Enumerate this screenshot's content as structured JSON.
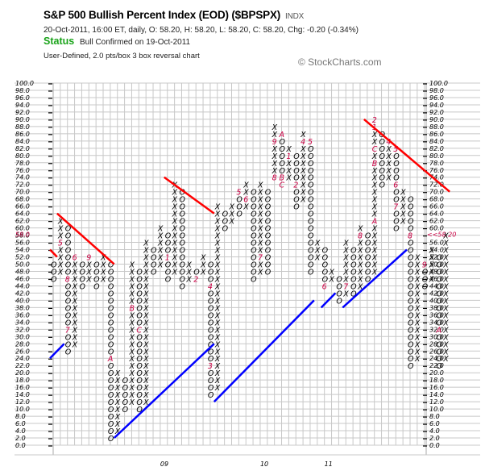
{
  "header": {
    "title": "S&P 500 Bullish Percent Index (EOD) ($BPSPX)",
    "symbol_type": "INDX",
    "quote_line": "20-Oct-2011, 16:00 ET, daily, O: 58.20, H: 58.20, L: 58.20, C: 58.20, Chg: -0.20 (-0.34%)",
    "status_label": "Status",
    "status_text": "Bull Confirmed on 19-Oct-2011",
    "chart_type": "User-Defined, 2.0 pts/box 3 box reversal chart",
    "copyright": "© StockCharts.com"
  },
  "colors": {
    "x_color": "#000000",
    "o_color": "#000000",
    "month_marker": "#cc0044",
    "resistance_line": "#ff0000",
    "support_line": "#0000ff",
    "grid": "#c8c8c8",
    "status": "#1aa31a",
    "last_price": "#cc0044"
  },
  "chart_data": {
    "type": "point-and-figure",
    "title": "S&P 500 Bullish Percent Index (EOD) ($BPSPX)",
    "box_size": 2.0,
    "reversal": 3,
    "ylim": [
      0,
      100
    ],
    "y_ticks": [
      "100.0",
      "98.0",
      "96.0",
      "94.0",
      "92.0",
      "90.0",
      "88.0",
      "86.0",
      "84.0",
      "82.0",
      "80.0",
      "78.0",
      "76.0",
      "74.0",
      "72.0",
      "70.0",
      "68.0",
      "66.0",
      "64.0",
      "62.0",
      "60.0",
      "58.0",
      "56.0",
      "54.0",
      "52.0",
      "50.0",
      "48.0",
      "46.0",
      "44.0",
      "42.0",
      "40.0",
      "38.0",
      "36.0",
      "34.0",
      "32.0",
      "30.0",
      "28.0",
      "26.0",
      "24.0",
      "22.0",
      "20.0",
      "18.0",
      "16.0",
      "14.0",
      "12.0",
      "10.0",
      "8.0",
      "6.0",
      "4.0",
      "2.0",
      "0.0"
    ],
    "last_value_label": "<<58.20",
    "last_value": 58.2,
    "x_labels": [
      {
        "label": "09",
        "col": 15
      },
      {
        "label": "10",
        "col": 29
      },
      {
        "label": "11",
        "col": 38
      }
    ],
    "columns": [
      {
        "col": 0,
        "type": "O",
        "from": 50,
        "to": 46,
        "marks": {}
      },
      {
        "col": 1,
        "type": "X",
        "from": 48,
        "to": 62,
        "marks": {
          "56": "5"
        }
      },
      {
        "col": 2,
        "type": "O",
        "from": 60,
        "to": 26,
        "marks": {
          "46": "8",
          "32": "7"
        }
      },
      {
        "col": 3,
        "type": "X",
        "from": 28,
        "to": 52,
        "marks": {
          "52": "6"
        }
      },
      {
        "col": 4,
        "type": "O",
        "from": 50,
        "to": 44,
        "marks": {}
      },
      {
        "col": 5,
        "type": "X",
        "from": 46,
        "to": 52,
        "marks": {
          "52": "9"
        }
      },
      {
        "col": 6,
        "type": "O",
        "from": 50,
        "to": 44,
        "marks": {}
      },
      {
        "col": 7,
        "type": "X",
        "from": 46,
        "to": 52,
        "marks": {}
      },
      {
        "col": 8,
        "type": "O",
        "from": 50,
        "to": 2,
        "marks": {
          "24": "A"
        }
      },
      {
        "col": 9,
        "type": "X",
        "from": 4,
        "to": 20,
        "marks": {}
      },
      {
        "col": 10,
        "type": "O",
        "from": 18,
        "to": 10,
        "marks": {}
      },
      {
        "col": 11,
        "type": "X",
        "from": 12,
        "to": 50,
        "marks": {
          "38": "B"
        }
      },
      {
        "col": 12,
        "type": "O",
        "from": 48,
        "to": 10,
        "marks": {
          "32": "C"
        }
      },
      {
        "col": 13,
        "type": "X",
        "from": 12,
        "to": 56,
        "marks": {}
      },
      {
        "col": 14,
        "type": "O",
        "from": 54,
        "to": 48,
        "marks": {}
      },
      {
        "col": 15,
        "type": "X",
        "from": 50,
        "to": 60,
        "marks": {}
      },
      {
        "col": 16,
        "type": "O",
        "from": 58,
        "to": 46,
        "marks": {
          "52": "1"
        }
      },
      {
        "col": 17,
        "type": "X",
        "from": 48,
        "to": 72,
        "marks": {}
      },
      {
        "col": 18,
        "type": "O",
        "from": 70,
        "to": 44,
        "marks": {}
      },
      {
        "col": 19,
        "type": "X",
        "from": 46,
        "to": 50,
        "marks": {}
      },
      {
        "col": 20,
        "type": "O",
        "from": 48,
        "to": 46,
        "marks": {
          "46": "2"
        }
      },
      {
        "col": 21,
        "type": "X",
        "from": 48,
        "to": 52,
        "marks": {}
      },
      {
        "col": 22,
        "type": "O",
        "from": 50,
        "to": 14,
        "marks": {
          "44": "4",
          "22": "3"
        }
      },
      {
        "col": 23,
        "type": "X",
        "from": 16,
        "to": 66,
        "marks": {}
      },
      {
        "col": 24,
        "type": "O",
        "from": 64,
        "to": 60,
        "marks": {}
      },
      {
        "col": 25,
        "type": "X",
        "from": 62,
        "to": 66,
        "marks": {}
      },
      {
        "col": 26,
        "type": "O",
        "from": 70,
        "to": 64,
        "marks": {
          "70": "5"
        }
      },
      {
        "col": 27,
        "type": "X",
        "from": 66,
        "to": 72,
        "marks": {
          "68": "6"
        }
      },
      {
        "col": 28,
        "type": "O",
        "from": 70,
        "to": 46,
        "marks": {}
      },
      {
        "col": 29,
        "type": "X",
        "from": 48,
        "to": 72,
        "marks": {
          "52": "7"
        }
      },
      {
        "col": 30,
        "type": "O",
        "from": 70,
        "to": 48,
        "marks": {}
      },
      {
        "col": 31,
        "type": "X",
        "from": 74,
        "to": 88,
        "marks": {
          "84": "9",
          "74": "8"
        }
      },
      {
        "col": 32,
        "type": "O",
        "from": 86,
        "to": 72,
        "marks": {
          "86": "A",
          "74": "B",
          "72": "C"
        }
      },
      {
        "col": 33,
        "type": "X",
        "from": 74,
        "to": 82,
        "marks": {
          "80": "1"
        }
      },
      {
        "col": 34,
        "type": "O",
        "from": 80,
        "to": 66,
        "marks": {
          "72": "2"
        }
      },
      {
        "col": 35,
        "type": "X",
        "from": 68,
        "to": 86,
        "marks": {
          "84": "4",
          "66": "3"
        }
      },
      {
        "col": 36,
        "type": "O",
        "from": 84,
        "to": 48,
        "marks": {
          "84": "5"
        }
      },
      {
        "col": 37,
        "type": "X",
        "from": 52,
        "to": 56,
        "marks": {}
      },
      {
        "col": 38,
        "type": "O",
        "from": 54,
        "to": 44,
        "marks": {
          "44": "6"
        }
      },
      {
        "col": 39,
        "type": "X",
        "from": 46,
        "to": 48,
        "marks": {}
      },
      {
        "col": 40,
        "type": "O",
        "from": 46,
        "to": 40,
        "marks": {}
      },
      {
        "col": 41,
        "type": "X",
        "from": 42,
        "to": 56,
        "marks": {
          "44": "7"
        }
      },
      {
        "col": 42,
        "type": "O",
        "from": 54,
        "to": 42,
        "marks": {}
      },
      {
        "col": 43,
        "type": "X",
        "from": 44,
        "to": 60,
        "marks": {
          "58": "8"
        }
      },
      {
        "col": 44,
        "type": "O",
        "from": 58,
        "to": 46,
        "marks": {
          "44": "9"
        }
      },
      {
        "col": 45,
        "type": "X",
        "from": 48,
        "to": 90,
        "marks": {
          "90": "2",
          "88": "1",
          "82": "C",
          "78": "B",
          "62": "A"
        }
      },
      {
        "col": 46,
        "type": "O",
        "from": 86,
        "to": 72,
        "marks": {
          "88": "3"
        }
      },
      {
        "col": 47,
        "type": "X",
        "from": 74,
        "to": 84,
        "marks": {
          "84": "4"
        }
      },
      {
        "col": 48,
        "type": "O",
        "from": 82,
        "to": 60,
        "marks": {
          "82": "5",
          "72": "6",
          "66": "7"
        }
      },
      {
        "col": 49,
        "type": "X",
        "from": 62,
        "to": 70,
        "marks": {}
      },
      {
        "col": 50,
        "type": "O",
        "from": 68,
        "to": 22,
        "marks": {
          "58": "8"
        }
      },
      {
        "col": 51,
        "type": "X",
        "from": 24,
        "to": 52,
        "marks": {}
      },
      {
        "col": 52,
        "type": "O",
        "from": 50,
        "to": 44,
        "marks": {
          "50": "9"
        }
      },
      {
        "col": 53,
        "type": "X",
        "from": 46,
        "to": 54,
        "marks": {}
      },
      {
        "col": 54,
        "type": "O",
        "from": 52,
        "to": 22,
        "marks": {
          "32": "A"
        }
      },
      {
        "col": 55,
        "type": "X",
        "from": 24,
        "to": 58,
        "marks": {}
      }
    ],
    "trend_lines": [
      {
        "color": "red",
        "from": [
          0,
          54
        ],
        "to": [
          1,
          52
        ]
      },
      {
        "color": "red",
        "from": [
          1,
          64
        ],
        "to": [
          9,
          50
        ]
      },
      {
        "color": "red",
        "from": [
          16,
          74
        ],
        "to": [
          23,
          64
        ]
      },
      {
        "color": "red",
        "from": [
          44,
          90
        ],
        "to": [
          56,
          70
        ]
      },
      {
        "color": "blue",
        "from": [
          0,
          24
        ],
        "to": [
          2,
          28
        ]
      },
      {
        "color": "blue",
        "from": [
          9,
          2
        ],
        "to": [
          23,
          28
        ]
      },
      {
        "col": 0,
        "color": "blue",
        "from": [
          23,
          12
        ],
        "to": [
          37,
          40
        ]
      },
      {
        "color": "blue",
        "from": [
          38,
          38
        ],
        "to": [
          40,
          42
        ]
      },
      {
        "color": "blue",
        "from": [
          41,
          38
        ],
        "to": [
          50,
          54
        ]
      }
    ]
  }
}
